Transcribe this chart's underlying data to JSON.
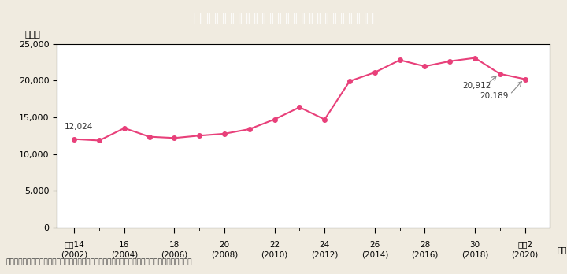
{
  "title": "Ｉ－７－７図　ストーカー事案の相談等件数の推移",
  "title_bg_color": "#3ab8c8",
  "title_text_color": "#ffffff",
  "ylabel": "（件）",
  "footer": "（備考）警察庁「ストーカー事案及び配偶者からの暴力事案等への対応状況について」より作成。",
  "bg_color": "#f0ebe0",
  "plot_bg_color": "#ffffff",
  "line_color": "#e8407a",
  "marker_color": "#e8407a",
  "years": [
    2002,
    2003,
    2004,
    2005,
    2006,
    2007,
    2008,
    2009,
    2010,
    2011,
    2012,
    2013,
    2014,
    2015,
    2016,
    2017,
    2018,
    2019,
    2020
  ],
  "values": [
    12024,
    11836,
    13522,
    12352,
    12176,
    12501,
    12757,
    13389,
    14720,
    16367,
    14706,
    19920,
    21102,
    22793,
    21936,
    22635,
    23079,
    20912,
    20189
  ],
  "x_major_positions": [
    2002,
    2004,
    2006,
    2008,
    2010,
    2012,
    2014,
    2016,
    2018,
    2020
  ],
  "x_major_labels_line1": [
    "平成14",
    "16",
    "18",
    "20",
    "22",
    "24",
    "26",
    "28",
    "30",
    "令和2"
  ],
  "x_major_labels_line2": [
    "(2002)",
    "(2004)",
    "(2006)",
    "(2008)",
    "(2010)",
    "(2012)",
    "(2014)",
    "(2016)",
    "(2018)",
    "(2020)"
  ],
  "ylim": [
    0,
    25000
  ],
  "yticks": [
    0,
    5000,
    10000,
    15000,
    20000,
    25000
  ],
  "annotation_first_label": "12,024",
  "annotation_first_year": 2002,
  "annotation_first_value": 12024,
  "annotation_second_label": "20,912",
  "annotation_second_year": 2019,
  "annotation_second_value": 20912,
  "annotation_third_label": "20,189",
  "annotation_third_year": 2020,
  "annotation_third_value": 20189
}
